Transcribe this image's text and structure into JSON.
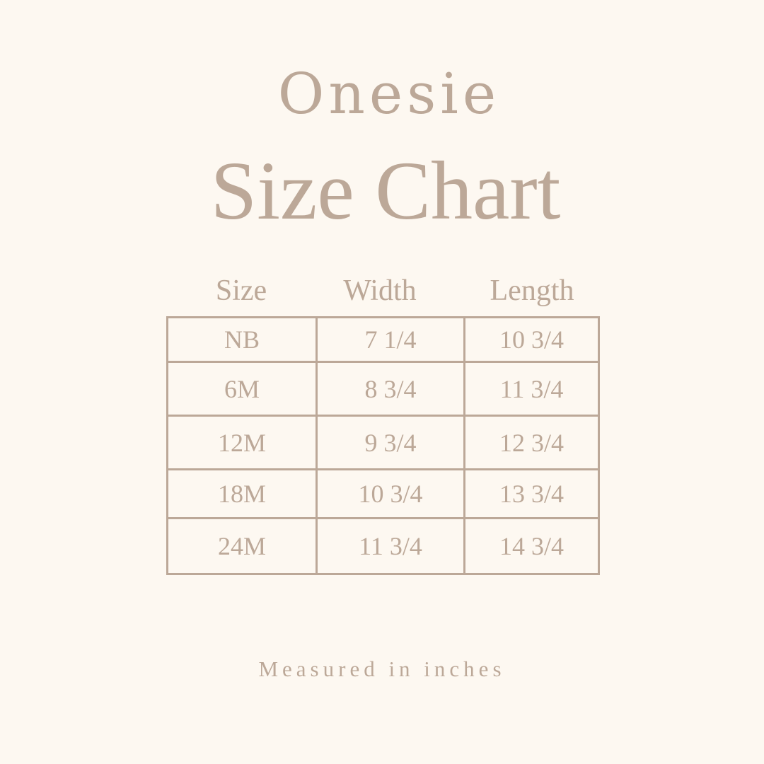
{
  "title_line1": "Onesie",
  "title_line2": "Size Chart",
  "table": {
    "headers": [
      "Size",
      "Width",
      "Length"
    ],
    "rows": [
      [
        "NB",
        "7 1/4",
        "10 3/4"
      ],
      [
        "6M",
        "8 3/4",
        "11 3/4"
      ],
      [
        "12M",
        "9 3/4",
        "12 3/4"
      ],
      [
        "18M",
        "10 3/4",
        "13 3/4"
      ],
      [
        "24M",
        "11 3/4",
        "14 3/4"
      ]
    ]
  },
  "footer": "Measured in inches",
  "colors": {
    "background": "#fdf8f1",
    "text": "#bca898"
  }
}
